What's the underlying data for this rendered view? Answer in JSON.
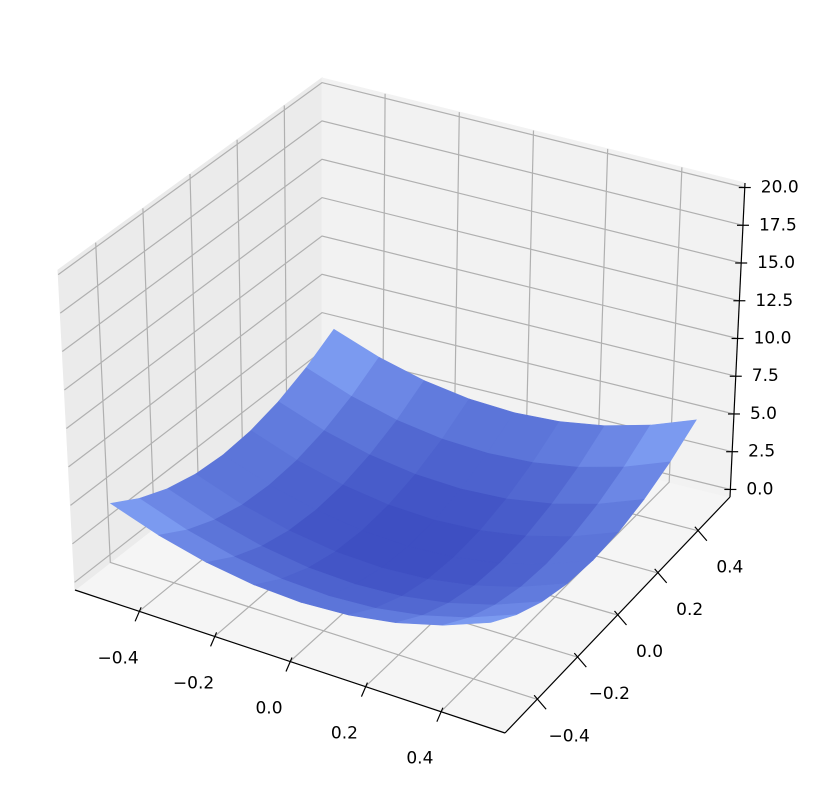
{
  "chart_data": {
    "type": "surface",
    "x": [
      -0.5,
      -0.375,
      -0.25,
      -0.125,
      0,
      0.125,
      0.25,
      0.375,
      0.5
    ],
    "y": [
      -0.5,
      -0.375,
      -0.25,
      -0.125,
      0,
      0.125,
      0.25,
      0.375,
      0.5
    ],
    "z": [
      [
        5,
        3.91,
        3.13,
        2.66,
        2.5,
        2.66,
        3.13,
        3.91,
        5
      ],
      [
        3.91,
        2.81,
        2.03,
        1.56,
        1.41,
        1.56,
        2.03,
        2.81,
        3.91
      ],
      [
        3.13,
        2.03,
        1.25,
        0.78,
        0.63,
        0.78,
        1.25,
        2.03,
        3.13
      ],
      [
        2.66,
        1.56,
        0.78,
        0.31,
        0.16,
        0.31,
        0.78,
        1.56,
        2.66
      ],
      [
        2.5,
        1.41,
        0.63,
        0.16,
        0,
        0.16,
        0.63,
        1.41,
        2.5
      ],
      [
        2.66,
        1.56,
        0.78,
        0.31,
        0.16,
        0.31,
        0.78,
        1.56,
        2.66
      ],
      [
        3.13,
        2.03,
        1.25,
        0.78,
        0.63,
        0.78,
        1.25,
        2.03,
        3.13
      ],
      [
        3.91,
        2.81,
        2.03,
        1.56,
        1.41,
        1.56,
        2.03,
        2.81,
        3.91
      ],
      [
        5,
        3.91,
        3.13,
        2.66,
        2.5,
        2.66,
        3.13,
        3.91,
        5
      ]
    ],
    "xlim": [
      -0.57,
      0.57
    ],
    "ylim": [
      -0.56,
      0.56
    ],
    "zlim": [
      -0.5,
      20.3
    ],
    "xticks": [
      {
        "value": -0.4,
        "label": "−0.4"
      },
      {
        "value": -0.2,
        "label": "−0.2"
      },
      {
        "value": 0,
        "label": "0.0"
      },
      0.2,
      0.4
    ],
    "yticks": [
      {
        "value": -0.4,
        "label": "−0.4"
      },
      {
        "value": -0.2,
        "label": "−0.2"
      },
      {
        "value": 0,
        "label": "0.0"
      },
      0.2,
      0.4
    ],
    "zticks": [
      {
        "value": 0,
        "label": "0.0"
      },
      2.5,
      {
        "value": 5,
        "label": "5.0"
      },
      7.5,
      {
        "value": 10,
        "label": "10.0"
      },
      12.5,
      {
        "value": 15,
        "label": "15.0"
      },
      17.5,
      {
        "value": 20,
        "label": "20.0"
      }
    ],
    "grid": true,
    "colormap": [
      "#3b4cc0",
      "#8db0fe"
    ],
    "color_range": [
      0,
      5
    ]
  }
}
